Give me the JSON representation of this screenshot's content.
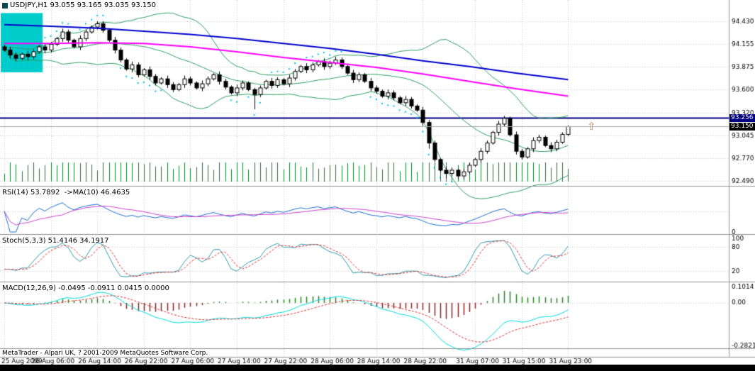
{
  "window": {
    "title": "USDJPY,H1 93.055 93.165 93.035 93.150",
    "copyright": "MetaTrader - Alpari UK, ? 2001-2009 MetaQuotes Software Corp."
  },
  "panes": {
    "rsi_label": "RSI(14) 53.7892  ->MA(10) 46.4635",
    "stoch_label": "Stoch(5,3,3) 51.4146 34.1917",
    "macd_label": "MACD(12,26,9) -0.0495 -0.0911 0.0415 0.0000"
  },
  "price_tags": {
    "line_price": "93.256",
    "current_price": "93.150"
  },
  "arrow_icon": "⇧",
  "colors": {
    "background": "#ffffff",
    "grid": "#c8c8c8",
    "bull_candle": "#ffffff",
    "bear_candle": "#000000",
    "candle_outline": "#000000",
    "bollinger": "#2f9e64",
    "ma_blue": "#0000cd",
    "ma_magenta": "#ff00ff",
    "hline": "#000080",
    "current_price_line": "#a8a8a8",
    "selection": "#00cccc",
    "band_dots": "#00c0f0",
    "volume": "#108030",
    "rsi_line": "#1e6fd2",
    "rsi_ma": "#cc44cc",
    "stoch_main": "#2e9ab0",
    "stoch_signal": "#e03030",
    "macd_line": "#00dce0",
    "macd_signal": "#e03030",
    "hist_pos": "#1a8a1a",
    "hist_neg": "#8b2020",
    "tag_line_bg": "#000080",
    "tag_bid_bg": "#000000",
    "arrow": "#b8905f"
  },
  "chart_data": {
    "type": "candlestick",
    "symbol": "USDJPY",
    "timeframe": "H1",
    "current_bar": {
      "open": 93.055,
      "high": 93.165,
      "low": 93.035,
      "close": 93.15
    },
    "ohlc": [
      [
        94.12,
        94.14,
        94.06,
        94.08
      ],
      [
        94.08,
        94.12,
        93.98,
        94.02
      ],
      [
        94.02,
        94.05,
        93.95,
        93.98
      ],
      [
        93.98,
        94.05,
        93.96,
        94.03
      ],
      [
        94.03,
        94.07,
        93.96,
        94.0
      ],
      [
        94.0,
        94.09,
        93.97,
        94.06
      ],
      [
        94.06,
        94.14,
        94.04,
        94.12
      ],
      [
        94.12,
        94.16,
        94.04,
        94.08
      ],
      [
        94.08,
        94.18,
        94.05,
        94.15
      ],
      [
        94.15,
        94.24,
        94.13,
        94.22
      ],
      [
        94.22,
        94.34,
        94.18,
        94.3
      ],
      [
        94.3,
        94.33,
        94.17,
        94.2
      ],
      [
        94.2,
        94.22,
        94.1,
        94.12
      ],
      [
        94.12,
        94.26,
        94.08,
        94.22
      ],
      [
        94.22,
        94.33,
        94.19,
        94.3
      ],
      [
        94.3,
        94.38,
        94.28,
        94.36
      ],
      [
        94.36,
        94.43,
        94.33,
        94.4
      ],
      [
        94.4,
        94.43,
        94.29,
        94.32
      ],
      [
        94.32,
        94.34,
        94.18,
        94.2
      ],
      [
        94.2,
        94.24,
        94.04,
        94.08
      ],
      [
        94.08,
        94.11,
        93.93,
        93.96
      ],
      [
        93.96,
        93.98,
        93.83,
        93.85
      ],
      [
        93.85,
        93.94,
        93.81,
        93.9
      ],
      [
        93.9,
        93.93,
        93.75,
        93.78
      ],
      [
        93.78,
        93.86,
        93.76,
        93.84
      ],
      [
        93.84,
        93.88,
        93.72,
        93.76
      ],
      [
        93.76,
        93.79,
        93.65,
        93.68
      ],
      [
        93.68,
        93.75,
        93.66,
        93.73
      ],
      [
        93.73,
        93.77,
        93.62,
        93.66
      ],
      [
        93.66,
        93.69,
        93.57,
        93.6
      ],
      [
        93.6,
        93.68,
        93.58,
        93.66
      ],
      [
        93.66,
        93.77,
        93.62,
        93.73
      ],
      [
        93.73,
        93.76,
        93.65,
        93.68
      ],
      [
        93.68,
        93.7,
        93.6,
        93.62
      ],
      [
        93.62,
        93.71,
        93.58,
        93.67
      ],
      [
        93.67,
        93.76,
        93.64,
        93.73
      ],
      [
        93.73,
        93.8,
        93.71,
        93.78
      ],
      [
        93.78,
        93.82,
        93.66,
        93.7
      ],
      [
        93.7,
        93.73,
        93.6,
        93.63
      ],
      [
        93.63,
        93.65,
        93.54,
        93.56
      ],
      [
        93.56,
        93.66,
        93.52,
        93.62
      ],
      [
        93.62,
        93.71,
        93.59,
        93.68
      ],
      [
        93.68,
        93.7,
        93.58,
        93.6
      ],
      [
        93.6,
        93.62,
        93.36,
        93.54
      ],
      [
        93.54,
        93.65,
        93.51,
        93.62
      ],
      [
        93.62,
        93.72,
        93.6,
        93.7
      ],
      [
        93.7,
        93.74,
        93.61,
        93.65
      ],
      [
        93.65,
        93.75,
        93.62,
        93.72
      ],
      [
        93.72,
        93.74,
        93.65,
        93.67
      ],
      [
        93.67,
        93.78,
        93.63,
        93.74
      ],
      [
        93.74,
        93.85,
        93.71,
        93.82
      ],
      [
        93.82,
        93.9,
        93.8,
        93.88
      ],
      [
        93.88,
        93.92,
        93.8,
        93.84
      ],
      [
        93.84,
        93.93,
        93.81,
        93.9
      ],
      [
        93.9,
        93.96,
        93.88,
        93.94
      ],
      [
        93.94,
        93.98,
        93.84,
        93.88
      ],
      [
        93.88,
        93.95,
        93.85,
        93.92
      ],
      [
        93.92,
        94.0,
        93.9,
        93.96
      ],
      [
        93.96,
        93.99,
        93.85,
        93.88
      ],
      [
        93.88,
        93.9,
        93.78,
        93.8
      ],
      [
        93.8,
        93.84,
        93.68,
        93.72
      ],
      [
        93.72,
        93.81,
        93.69,
        93.78
      ],
      [
        93.78,
        93.8,
        93.68,
        93.7
      ],
      [
        93.7,
        93.74,
        93.58,
        93.62
      ],
      [
        93.62,
        93.65,
        93.55,
        93.58
      ],
      [
        93.58,
        93.6,
        93.5,
        93.52
      ],
      [
        93.52,
        93.6,
        93.48,
        93.56
      ],
      [
        93.56,
        93.59,
        93.47,
        93.5
      ],
      [
        93.5,
        93.52,
        93.42,
        93.44
      ],
      [
        93.44,
        93.52,
        93.4,
        93.48
      ],
      [
        93.48,
        93.51,
        93.37,
        93.4
      ],
      [
        93.4,
        93.42,
        93.33,
        93.35
      ],
      [
        93.35,
        93.39,
        93.16,
        93.2
      ],
      [
        93.2,
        93.23,
        92.88,
        92.95
      ],
      [
        92.95,
        92.98,
        92.72,
        92.75
      ],
      [
        92.75,
        92.77,
        92.6,
        92.62
      ],
      [
        92.62,
        92.66,
        92.52,
        92.58
      ],
      [
        92.58,
        92.65,
        92.55,
        92.62
      ],
      [
        92.62,
        92.64,
        92.51,
        92.55
      ],
      [
        92.55,
        92.64,
        92.51,
        92.6
      ],
      [
        92.6,
        92.71,
        92.57,
        92.68
      ],
      [
        92.68,
        92.77,
        92.66,
        92.75
      ],
      [
        92.75,
        92.89,
        92.71,
        92.85
      ],
      [
        92.85,
        92.98,
        92.82,
        92.95
      ],
      [
        92.95,
        93.1,
        92.93,
        93.08
      ],
      [
        93.08,
        93.22,
        93.04,
        93.18
      ],
      [
        93.18,
        93.28,
        93.15,
        93.25
      ],
      [
        93.25,
        93.27,
        93.03,
        93.05
      ],
      [
        93.05,
        93.09,
        92.81,
        92.85
      ],
      [
        92.85,
        92.88,
        92.75,
        92.78
      ],
      [
        92.78,
        92.9,
        92.76,
        92.88
      ],
      [
        92.88,
        93.02,
        92.84,
        92.98
      ],
      [
        92.98,
        93.05,
        92.95,
        93.02
      ],
      [
        93.02,
        93.04,
        92.9,
        92.92
      ],
      [
        92.92,
        92.96,
        92.84,
        92.88
      ],
      [
        92.88,
        92.99,
        92.85,
        92.96
      ],
      [
        92.96,
        93.08,
        92.94,
        93.055
      ],
      [
        93.055,
        93.165,
        93.035,
        93.15
      ]
    ],
    "price_axis": {
      "ticks": [
        94.43,
        94.155,
        93.875,
        93.6,
        93.32,
        93.045,
        92.77,
        92.49
      ]
    },
    "time_axis": {
      "labels": [
        {
          "i": 0,
          "label": "25 Aug 2009"
        },
        {
          "i": 8,
          "label": "26 Aug 06:00"
        },
        {
          "i": 16,
          "label": "26 Aug 14:00"
        },
        {
          "i": 24,
          "label": "26 Aug 22:00"
        },
        {
          "i": 32,
          "label": "27 Aug 06:00"
        },
        {
          "i": 40,
          "label": "27 Aug 14:00"
        },
        {
          "i": 48,
          "label": "27 Aug 22:00"
        },
        {
          "i": 56,
          "label": "28 Aug 06:00"
        },
        {
          "i": 64,
          "label": "28 Aug 14:00"
        },
        {
          "i": 72,
          "label": "28 Aug 22:00"
        },
        {
          "i": 81,
          "label": "31 Aug 07:00"
        },
        {
          "i": 89,
          "label": "31 Aug 15:00"
        },
        {
          "i": 97,
          "label": "31 Aug 23:00"
        }
      ]
    },
    "overlays": {
      "horizontal_line": 93.256,
      "current_price": 93.15,
      "bollinger": {
        "period": 20,
        "deviation": 2
      },
      "ma_blue": [
        [
          0,
          94.39
        ],
        [
          8,
          94.37
        ],
        [
          16,
          94.345
        ],
        [
          24,
          94.31
        ],
        [
          32,
          94.27
        ],
        [
          40,
          94.22
        ],
        [
          48,
          94.16
        ],
        [
          56,
          94.1
        ],
        [
          64,
          94.03
        ],
        [
          72,
          93.95
        ],
        [
          80,
          93.88
        ],
        [
          88,
          93.8
        ],
        [
          97,
          93.72
        ]
      ],
      "ma_magenta": [
        [
          0,
          94.16
        ],
        [
          8,
          94.16
        ],
        [
          16,
          94.17
        ],
        [
          24,
          94.16
        ],
        [
          32,
          94.12
        ],
        [
          40,
          94.06
        ],
        [
          48,
          93.99
        ],
        [
          56,
          93.93
        ],
        [
          64,
          93.87
        ],
        [
          72,
          93.79
        ],
        [
          80,
          93.7
        ],
        [
          88,
          93.61
        ],
        [
          97,
          93.52
        ]
      ],
      "selection_rect": {
        "from_bar": 0,
        "to_bar": 6,
        "price_top": 94.53,
        "price_bottom": 93.81
      }
    },
    "indicators": {
      "rsi": {
        "period": 14,
        "value": 53.7892,
        "ma_period": 10,
        "ma_value": 46.4635,
        "axis": [
          {
            "v": 0,
            "label": "0"
          }
        ]
      },
      "stoch": {
        "params": [
          5,
          3,
          3
        ],
        "main": 51.4146,
        "signal": 34.1917,
        "axis": [
          {
            "v": 100,
            "label": "100"
          },
          {
            "v": 80,
            "label": "80"
          },
          {
            "v": 20,
            "label": "20"
          }
        ]
      },
      "macd": {
        "params": [
          12,
          26,
          9
        ],
        "values": [
          -0.0495,
          -0.0911,
          0.0415,
          0.0
        ],
        "axis": [
          {
            "v": 0.1014,
            "label": "0.1014"
          },
          {
            "v": 0,
            "label": "0.00"
          },
          {
            "v": -0.2821,
            "label": "-0.2821"
          }
        ]
      }
    }
  }
}
